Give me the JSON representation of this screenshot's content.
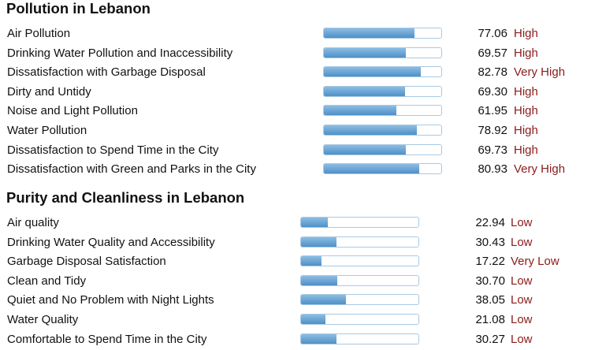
{
  "pollution": {
    "title": "Pollution in Lebanon",
    "rows": [
      {
        "label": "Air Pollution",
        "value": "77.06",
        "level": "High",
        "pct": 77.06
      },
      {
        "label": "Drinking Water Pollution and Inaccessibility",
        "value": "69.57",
        "level": "High",
        "pct": 69.57
      },
      {
        "label": "Dissatisfaction with Garbage Disposal",
        "value": "82.78",
        "level": "Very High",
        "pct": 82.78
      },
      {
        "label": "Dirty and Untidy",
        "value": "69.30",
        "level": "High",
        "pct": 69.3
      },
      {
        "label": "Noise and Light Pollution",
        "value": "61.95",
        "level": "High",
        "pct": 61.95
      },
      {
        "label": "Water Pollution",
        "value": "78.92",
        "level": "High",
        "pct": 78.92
      },
      {
        "label": "Dissatisfaction to Spend Time in the City",
        "value": "69.73",
        "level": "High",
        "pct": 69.73
      },
      {
        "label": "Dissatisfaction with Green and Parks in the City",
        "value": "80.93",
        "level": "Very High",
        "pct": 80.93
      }
    ]
  },
  "purity": {
    "title": "Purity and Cleanliness in Lebanon",
    "rows": [
      {
        "label": "Air quality",
        "value": "22.94",
        "level": "Low",
        "pct": 22.94
      },
      {
        "label": "Drinking Water Quality and Accessibility",
        "value": "30.43",
        "level": "Low",
        "pct": 30.43
      },
      {
        "label": "Garbage Disposal Satisfaction",
        "value": "17.22",
        "level": "Very Low",
        "pct": 17.22
      },
      {
        "label": "Clean and Tidy",
        "value": "30.70",
        "level": "Low",
        "pct": 30.7
      },
      {
        "label": "Quiet and No Problem with Night Lights",
        "value": "38.05",
        "level": "Low",
        "pct": 38.05
      },
      {
        "label": "Water Quality",
        "value": "21.08",
        "level": "Low",
        "pct": 21.08
      },
      {
        "label": "Comfortable to Spend Time in the City",
        "value": "30.27",
        "level": "Low",
        "pct": 30.27
      }
    ]
  }
}
